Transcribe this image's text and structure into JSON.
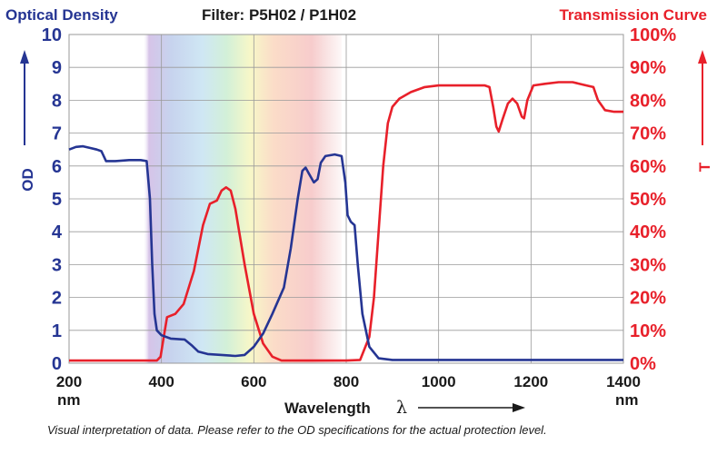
{
  "header": {
    "left_title": "Optical Density",
    "center_title": "Filter: P5H02 / P1H02",
    "right_title": "Transmission Curve"
  },
  "colors": {
    "od": "#253593",
    "transmission": "#e8202a",
    "grid": "#9a9a9a"
  },
  "footnote": "Visual interpretation of data. Please refer to the OD specifications for the actual protection level.",
  "chart_data": {
    "type": "line",
    "xlabel": "Wavelength",
    "xlabel_symbol": "λ",
    "x_unit": "nm",
    "xlim": [
      200,
      1400
    ],
    "x_ticks": [
      "200",
      "400",
      "600",
      "800",
      "1000",
      "1200",
      "1400"
    ],
    "left_axis": {
      "label": "OD",
      "ylim": [
        0,
        10
      ],
      "ticks": [
        "0",
        "1",
        "2",
        "3",
        "4",
        "5",
        "6",
        "7",
        "8",
        "9",
        "10"
      ]
    },
    "right_axis": {
      "label": "T",
      "ylim": [
        0,
        100
      ],
      "ticks": [
        "0%",
        "10%",
        "20%",
        "30%",
        "40%",
        "50%",
        "60%",
        "70%",
        "80%",
        "90%",
        "100%"
      ]
    },
    "visible_spectrum_band": [
      360,
      790
    ],
    "grid": true,
    "series": [
      {
        "name": "OD",
        "axis": "left",
        "color": "#253593",
        "points": [
          [
            200,
            6.5
          ],
          [
            215,
            6.58
          ],
          [
            230,
            6.6
          ],
          [
            245,
            6.55
          ],
          [
            260,
            6.5
          ],
          [
            270,
            6.45
          ],
          [
            280,
            6.15
          ],
          [
            300,
            6.15
          ],
          [
            330,
            6.18
          ],
          [
            355,
            6.18
          ],
          [
            368,
            6.15
          ],
          [
            375,
            5.0
          ],
          [
            380,
            3.0
          ],
          [
            385,
            1.5
          ],
          [
            390,
            1.0
          ],
          [
            400,
            0.85
          ],
          [
            420,
            0.75
          ],
          [
            450,
            0.72
          ],
          [
            465,
            0.55
          ],
          [
            480,
            0.35
          ],
          [
            500,
            0.28
          ],
          [
            530,
            0.25
          ],
          [
            560,
            0.22
          ],
          [
            580,
            0.25
          ],
          [
            600,
            0.5
          ],
          [
            620,
            0.9
          ],
          [
            640,
            1.5
          ],
          [
            665,
            2.3
          ],
          [
            680,
            3.5
          ],
          [
            695,
            5.0
          ],
          [
            705,
            5.85
          ],
          [
            712,
            5.95
          ],
          [
            720,
            5.75
          ],
          [
            730,
            5.5
          ],
          [
            738,
            5.6
          ],
          [
            745,
            6.1
          ],
          [
            755,
            6.3
          ],
          [
            775,
            6.35
          ],
          [
            790,
            6.3
          ],
          [
            798,
            5.5
          ],
          [
            803,
            4.5
          ],
          [
            810,
            4.3
          ],
          [
            818,
            4.2
          ],
          [
            825,
            3.0
          ],
          [
            835,
            1.5
          ],
          [
            850,
            0.5
          ],
          [
            870,
            0.15
          ],
          [
            900,
            0.1
          ],
          [
            1000,
            0.1
          ],
          [
            1100,
            0.1
          ],
          [
            1200,
            0.1
          ],
          [
            1300,
            0.1
          ],
          [
            1400,
            0.1
          ]
        ]
      },
      {
        "name": "T",
        "axis": "right",
        "color": "#e8202a",
        "points": [
          [
            200,
            0.8
          ],
          [
            300,
            0.8
          ],
          [
            390,
            0.8
          ],
          [
            398,
            2.0
          ],
          [
            405,
            8.0
          ],
          [
            412,
            14.0
          ],
          [
            430,
            15.0
          ],
          [
            448,
            18.0
          ],
          [
            470,
            28.0
          ],
          [
            490,
            42.0
          ],
          [
            505,
            48.5
          ],
          [
            520,
            49.5
          ],
          [
            530,
            52.5
          ],
          [
            540,
            53.5
          ],
          [
            550,
            52.5
          ],
          [
            560,
            47.0
          ],
          [
            580,
            30.0
          ],
          [
            600,
            15.0
          ],
          [
            620,
            6.0
          ],
          [
            640,
            2.0
          ],
          [
            660,
            0.8
          ],
          [
            700,
            0.8
          ],
          [
            800,
            0.8
          ],
          [
            830,
            1.0
          ],
          [
            850,
            8.0
          ],
          [
            860,
            20.0
          ],
          [
            870,
            40.0
          ],
          [
            880,
            60.0
          ],
          [
            890,
            73.0
          ],
          [
            900,
            78.0
          ],
          [
            915,
            80.5
          ],
          [
            940,
            82.5
          ],
          [
            970,
            84.0
          ],
          [
            1000,
            84.5
          ],
          [
            1050,
            84.5
          ],
          [
            1100,
            84.5
          ],
          [
            1110,
            84.0
          ],
          [
            1118,
            78.0
          ],
          [
            1125,
            72.0
          ],
          [
            1130,
            70.5
          ],
          [
            1138,
            74.0
          ],
          [
            1150,
            79.0
          ],
          [
            1160,
            80.5
          ],
          [
            1170,
            79.0
          ],
          [
            1180,
            75.0
          ],
          [
            1185,
            74.5
          ],
          [
            1192,
            80.0
          ],
          [
            1205,
            84.5
          ],
          [
            1230,
            85.0
          ],
          [
            1260,
            85.5
          ],
          [
            1290,
            85.5
          ],
          [
            1320,
            84.5
          ],
          [
            1335,
            84.0
          ],
          [
            1345,
            80.0
          ],
          [
            1360,
            77.0
          ],
          [
            1380,
            76.5
          ],
          [
            1400,
            76.5
          ]
        ]
      }
    ]
  }
}
